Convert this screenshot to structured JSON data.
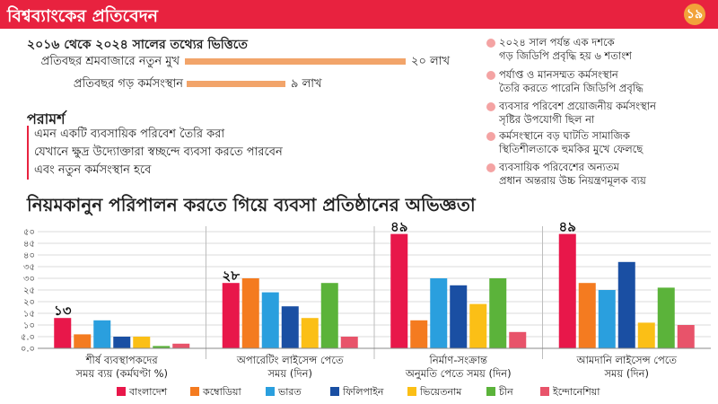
{
  "header": {
    "title": "বিশ্বব্যাংকের প্রতিবেদন",
    "logo_text": "১৯"
  },
  "stats": {
    "basis": "২০১৬ থেকে ২০২৪ সালের তথ্যের ভিত্তিতে",
    "rows": [
      {
        "label": "প্রতিবছর শ্রমবাজারে নতুন মুখ",
        "value_text": "২০ লাখ",
        "value": 20
      },
      {
        "label": "প্রতিবছর গড় কর্মসংস্থান",
        "value_text": "৯ লাখ",
        "value": 9
      }
    ]
  },
  "advice": {
    "title": "পরামর্শ",
    "lines": [
      "এমন একটি ব্যবসায়িক পরিবেশ তৈরি করা",
      "যেখানে ক্ষুদ্র উদ্যোক্তারা স্বচ্ছন্দে ব্যবসা করতে পারবেন",
      "এবং নতুন কর্মসংস্থান হবে"
    ]
  },
  "findings": [
    {
      "line1": "২০২৪ সাল পর্যন্ত এক দশকে",
      "line2": "গড় জিডিপি প্রবৃদ্ধি হয় ৬ শতাংশ"
    },
    {
      "line1": "পর্যাপ্ত ও মানসম্মত কর্মসংস্থান",
      "line2": "তৈরি করতে পারেনি জিডিপি প্রবৃদ্ধি"
    },
    {
      "line1": "ব্যবসার পরিবেশ প্রয়োজনীয় কর্মসংস্থান",
      "line2": "সৃষ্টির উপযোগী ছিল না"
    },
    {
      "line1": "কর্মসংস্থানে বড় ঘাটতি সামাজিক",
      "line2": "স্থিতিশীলতাকে হুমকির মুখে ফেলছে"
    },
    {
      "line1": "ব্যবসায়িক পরিবেশের অন্যতম",
      "line2": "প্রধান অন্তরায় উচ্চ নিয়ন্ত্রণমূলক ব্যয়"
    }
  ],
  "colors": {
    "header": "#e8223f",
    "stat_bar": "#f2a46a",
    "finding_dot": "#f4a3a3",
    "series": [
      "#e8174a",
      "#f47b20",
      "#2a9fde",
      "#1a4fa3",
      "#fbbf16",
      "#5bb33a",
      "#e8536a"
    ]
  },
  "chart_data": {
    "type": "bar",
    "title": "নিয়মকানুন পরিপালন করতে গিয়ে ব্যবসা প্রতিষ্ঠানের অভিজ্ঞতা",
    "ylim": [
      0,
      50
    ],
    "yticks": [
      "০.০",
      "৫.০",
      "১০",
      "১৫",
      "২০",
      "২৫",
      "৩০",
      "৩৫",
      "৪০",
      "৪৫",
      "৫০"
    ],
    "categories": [
      {
        "line1": "শীর্ষ ব্যবস্থাপকদের",
        "line2": "সময় ব্যয় (কর্মঘণ্টা %)"
      },
      {
        "line1": "অপারেটিং লাইসেন্স পেতে",
        "line2": "সময় (দিন)"
      },
      {
        "line1": "নির্মাণ-সংক্রান্ত",
        "line2": "অনুমতি পেতে সময় (দিন)"
      },
      {
        "line1": "আমদানি লাইসেন্স পেতে",
        "line2": "সময় (দিন)"
      }
    ],
    "series": [
      {
        "name": "বাংলাদেশ",
        "values": [
          13,
          28,
          49,
          49
        ]
      },
      {
        "name": "কম্বোডিয়া",
        "values": [
          6,
          30,
          12,
          28
        ]
      },
      {
        "name": "ভারত",
        "values": [
          12,
          24,
          30,
          25
        ]
      },
      {
        "name": "ফিলিপাইন",
        "values": [
          5,
          18,
          27,
          37
        ]
      },
      {
        "name": "ভিয়েতনাম",
        "values": [
          5,
          13,
          19,
          11
        ]
      },
      {
        "name": "চীন",
        "values": [
          1,
          28,
          30,
          26
        ]
      },
      {
        "name": "ইন্দোনেশিয়া",
        "values": [
          2,
          5,
          7,
          10
        ]
      }
    ],
    "data_labels": [
      {
        "category": 0,
        "text": "১৩"
      },
      {
        "category": 1,
        "text": "২৮"
      },
      {
        "category": 2,
        "text": "৪৯"
      },
      {
        "category": 3,
        "text": "৪৯"
      }
    ],
    "grid": true,
    "legend": "bottom"
  }
}
